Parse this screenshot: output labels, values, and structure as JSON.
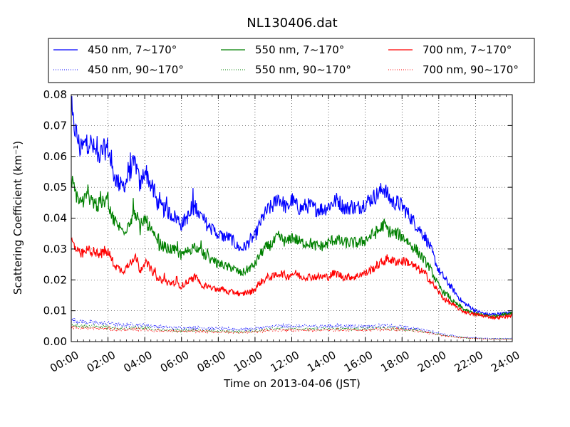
{
  "chart_data": {
    "type": "line",
    "title": "NL130406.dat",
    "xlabel": "Time on 2013-04-06 (JST)",
    "ylabel": "Scattering Coefficient (km⁻¹)",
    "xlim": [
      0,
      24
    ],
    "ylim": [
      0,
      0.08
    ],
    "x_ticks": [
      "00:00",
      "02:00",
      "04:00",
      "06:00",
      "08:00",
      "10:00",
      "12:00",
      "14:00",
      "16:00",
      "18:00",
      "20:00",
      "22:00",
      "24:00"
    ],
    "y_ticks": [
      "0.00",
      "0.01",
      "0.02",
      "0.03",
      "0.04",
      "0.05",
      "0.06",
      "0.07",
      "0.08"
    ],
    "grid": true,
    "legend_position": "top",
    "x_hours": [
      0,
      0.25,
      0.5,
      0.75,
      1,
      1.25,
      1.5,
      1.75,
      2,
      2.25,
      2.5,
      2.75,
      3,
      3.25,
      3.5,
      3.75,
      4,
      4.25,
      4.5,
      4.75,
      5,
      5.25,
      5.5,
      5.75,
      6,
      6.25,
      6.5,
      6.75,
      7,
      7.25,
      7.5,
      7.75,
      8,
      8.25,
      8.5,
      8.75,
      9,
      9.25,
      9.5,
      9.75,
      10,
      10.25,
      10.5,
      10.75,
      11,
      11.25,
      11.5,
      11.75,
      12,
      12.25,
      12.5,
      12.75,
      13,
      13.25,
      13.5,
      13.75,
      14,
      14.25,
      14.5,
      14.75,
      15,
      15.25,
      15.5,
      15.75,
      16,
      16.25,
      16.5,
      16.75,
      17,
      17.25,
      17.5,
      17.75,
      18,
      18.25,
      18.5,
      18.75,
      19,
      19.25,
      19.5,
      19.75,
      20,
      20.25,
      20.5,
      20.75,
      21,
      21.25,
      21.5,
      21.75,
      22,
      22.25,
      22.5,
      22.75,
      23,
      23.25,
      23.5,
      23.75,
      24
    ],
    "series": [
      {
        "name": "450 nm, 7∼170°",
        "color": "#0000ff",
        "style": "solid",
        "values": [
          0.073,
          0.068,
          0.062,
          0.064,
          0.065,
          0.062,
          0.06,
          0.062,
          0.063,
          0.055,
          0.052,
          0.05,
          0.052,
          0.056,
          0.058,
          0.05,
          0.056,
          0.052,
          0.048,
          0.044,
          0.043,
          0.042,
          0.041,
          0.04,
          0.038,
          0.04,
          0.041,
          0.044,
          0.041,
          0.039,
          0.037,
          0.036,
          0.035,
          0.034,
          0.034,
          0.033,
          0.031,
          0.03,
          0.031,
          0.033,
          0.034,
          0.038,
          0.041,
          0.043,
          0.044,
          0.047,
          0.045,
          0.043,
          0.046,
          0.044,
          0.043,
          0.044,
          0.044,
          0.043,
          0.043,
          0.043,
          0.044,
          0.045,
          0.046,
          0.044,
          0.043,
          0.044,
          0.043,
          0.044,
          0.045,
          0.046,
          0.047,
          0.048,
          0.05,
          0.047,
          0.045,
          0.045,
          0.044,
          0.042,
          0.04,
          0.038,
          0.036,
          0.034,
          0.031,
          0.027,
          0.023,
          0.021,
          0.019,
          0.017,
          0.015,
          0.013,
          0.012,
          0.011,
          0.01,
          0.0095,
          0.009,
          0.0088,
          0.0088,
          0.009,
          0.009,
          0.0092,
          0.0095
        ]
      },
      {
        "name": "450 nm, 90∼170°",
        "color": "#0000ff",
        "style": "dotted",
        "values": [
          0.007,
          0.0068,
          0.0065,
          0.0063,
          0.0062,
          0.006,
          0.006,
          0.006,
          0.006,
          0.0058,
          0.0055,
          0.0053,
          0.0053,
          0.0055,
          0.0056,
          0.0053,
          0.0055,
          0.0052,
          0.005,
          0.0048,
          0.0047,
          0.0046,
          0.0045,
          0.0045,
          0.0044,
          0.0044,
          0.0045,
          0.0046,
          0.0045,
          0.0044,
          0.0043,
          0.0042,
          0.0042,
          0.0041,
          0.0041,
          0.004,
          0.004,
          0.004,
          0.004,
          0.0041,
          0.0042,
          0.0044,
          0.0046,
          0.0048,
          0.005,
          0.0051,
          0.005,
          0.005,
          0.0051,
          0.005,
          0.005,
          0.005,
          0.005,
          0.005,
          0.005,
          0.005,
          0.005,
          0.005,
          0.0051,
          0.005,
          0.005,
          0.005,
          0.005,
          0.005,
          0.005,
          0.005,
          0.005,
          0.0051,
          0.0051,
          0.005,
          0.0049,
          0.0048,
          0.0047,
          0.0046,
          0.0044,
          0.0042,
          0.004,
          0.0037,
          0.0034,
          0.003,
          0.0027,
          0.0024,
          0.0021,
          0.0019,
          0.0017,
          0.0015,
          0.0014,
          0.0013,
          0.0012,
          0.0011,
          0.0011,
          0.001,
          0.001,
          0.001,
          0.001,
          0.001,
          0.001
        ]
      },
      {
        "name": "550 nm, 7∼170°",
        "color": "#008000",
        "style": "solid",
        "values": [
          0.052,
          0.048,
          0.045,
          0.046,
          0.047,
          0.045,
          0.044,
          0.045,
          0.046,
          0.04,
          0.038,
          0.036,
          0.037,
          0.04,
          0.042,
          0.036,
          0.04,
          0.037,
          0.034,
          0.031,
          0.031,
          0.03,
          0.03,
          0.029,
          0.028,
          0.029,
          0.03,
          0.031,
          0.029,
          0.028,
          0.027,
          0.026,
          0.025,
          0.025,
          0.024,
          0.024,
          0.023,
          0.022,
          0.023,
          0.024,
          0.025,
          0.028,
          0.03,
          0.031,
          0.032,
          0.034,
          0.033,
          0.032,
          0.034,
          0.033,
          0.032,
          0.032,
          0.032,
          0.031,
          0.031,
          0.031,
          0.032,
          0.033,
          0.033,
          0.032,
          0.032,
          0.032,
          0.032,
          0.032,
          0.033,
          0.034,
          0.035,
          0.036,
          0.038,
          0.036,
          0.035,
          0.035,
          0.034,
          0.033,
          0.031,
          0.03,
          0.028,
          0.026,
          0.024,
          0.021,
          0.018,
          0.016,
          0.015,
          0.013,
          0.012,
          0.011,
          0.01,
          0.0095,
          0.009,
          0.0088,
          0.0085,
          0.0083,
          0.0083,
          0.0085,
          0.0088,
          0.009,
          0.0095
        ]
      },
      {
        "name": "550 nm, 90∼170°",
        "color": "#008000",
        "style": "dotted",
        "values": [
          0.0055,
          0.0053,
          0.0051,
          0.005,
          0.0049,
          0.0048,
          0.0047,
          0.0047,
          0.0047,
          0.0045,
          0.0043,
          0.0042,
          0.0042,
          0.0044,
          0.0045,
          0.0042,
          0.0044,
          0.0042,
          0.004,
          0.0038,
          0.0038,
          0.0037,
          0.0037,
          0.0036,
          0.0036,
          0.0036,
          0.0037,
          0.0037,
          0.0036,
          0.0035,
          0.0035,
          0.0034,
          0.0034,
          0.0033,
          0.0033,
          0.0033,
          0.0032,
          0.0032,
          0.0033,
          0.0034,
          0.0035,
          0.0037,
          0.0039,
          0.004,
          0.0041,
          0.0042,
          0.0042,
          0.0041,
          0.0042,
          0.0042,
          0.0041,
          0.0041,
          0.0041,
          0.0041,
          0.0041,
          0.0041,
          0.0041,
          0.0042,
          0.0042,
          0.0041,
          0.0041,
          0.0041,
          0.0041,
          0.0041,
          0.0042,
          0.0042,
          0.0043,
          0.0043,
          0.0044,
          0.0043,
          0.0042,
          0.0041,
          0.004,
          0.0039,
          0.0037,
          0.0036,
          0.0034,
          0.0031,
          0.0029,
          0.0026,
          0.0023,
          0.002,
          0.0018,
          0.0016,
          0.0015,
          0.0013,
          0.0012,
          0.0011,
          0.001,
          0.001,
          0.0009,
          0.0009,
          0.0009,
          0.0009,
          0.0009,
          0.0009,
          0.0009
        ]
      },
      {
        "name": "700 nm, 7∼170°",
        "color": "#ff0000",
        "style": "solid",
        "values": [
          0.033,
          0.03,
          0.028,
          0.029,
          0.03,
          0.029,
          0.028,
          0.029,
          0.029,
          0.026,
          0.024,
          0.023,
          0.024,
          0.026,
          0.028,
          0.023,
          0.026,
          0.024,
          0.022,
          0.02,
          0.02,
          0.019,
          0.019,
          0.019,
          0.018,
          0.019,
          0.02,
          0.021,
          0.019,
          0.018,
          0.018,
          0.017,
          0.017,
          0.017,
          0.016,
          0.016,
          0.016,
          0.015,
          0.016,
          0.016,
          0.017,
          0.019,
          0.02,
          0.021,
          0.021,
          0.022,
          0.022,
          0.021,
          0.022,
          0.022,
          0.021,
          0.021,
          0.021,
          0.021,
          0.021,
          0.021,
          0.021,
          0.022,
          0.022,
          0.021,
          0.021,
          0.021,
          0.021,
          0.022,
          0.022,
          0.023,
          0.024,
          0.025,
          0.026,
          0.027,
          0.026,
          0.026,
          0.026,
          0.026,
          0.025,
          0.024,
          0.023,
          0.022,
          0.02,
          0.018,
          0.016,
          0.014,
          0.013,
          0.012,
          0.011,
          0.01,
          0.0095,
          0.009,
          0.0088,
          0.0085,
          0.0083,
          0.008,
          0.0078,
          0.0078,
          0.008,
          0.0082,
          0.0085
        ]
      },
      {
        "name": "700 nm, 90∼170°",
        "color": "#ff0000",
        "style": "dotted",
        "values": [
          0.0048,
          0.0046,
          0.0045,
          0.0044,
          0.0043,
          0.0042,
          0.0042,
          0.0042,
          0.0042,
          0.004,
          0.0039,
          0.0038,
          0.0038,
          0.0039,
          0.004,
          0.0038,
          0.0039,
          0.0038,
          0.0036,
          0.0035,
          0.0035,
          0.0034,
          0.0034,
          0.0033,
          0.0033,
          0.0033,
          0.0034,
          0.0034,
          0.0033,
          0.0033,
          0.0032,
          0.0032,
          0.0031,
          0.0031,
          0.0031,
          0.003,
          0.003,
          0.003,
          0.003,
          0.0031,
          0.0032,
          0.0033,
          0.0035,
          0.0036,
          0.0037,
          0.0038,
          0.0037,
          0.0037,
          0.0038,
          0.0037,
          0.0037,
          0.0037,
          0.0037,
          0.0037,
          0.0037,
          0.0037,
          0.0037,
          0.0038,
          0.0038,
          0.0037,
          0.0037,
          0.0037,
          0.0037,
          0.0037,
          0.0038,
          0.0038,
          0.0039,
          0.0039,
          0.004,
          0.004,
          0.0039,
          0.0039,
          0.0038,
          0.0037,
          0.0036,
          0.0034,
          0.0032,
          0.003,
          0.0028,
          0.0025,
          0.0022,
          0.002,
          0.0018,
          0.0016,
          0.0014,
          0.0013,
          0.0012,
          0.0011,
          0.001,
          0.0009,
          0.0009,
          0.0008,
          0.0008,
          0.0008,
          0.0008,
          0.0008,
          0.0008
        ]
      }
    ]
  }
}
